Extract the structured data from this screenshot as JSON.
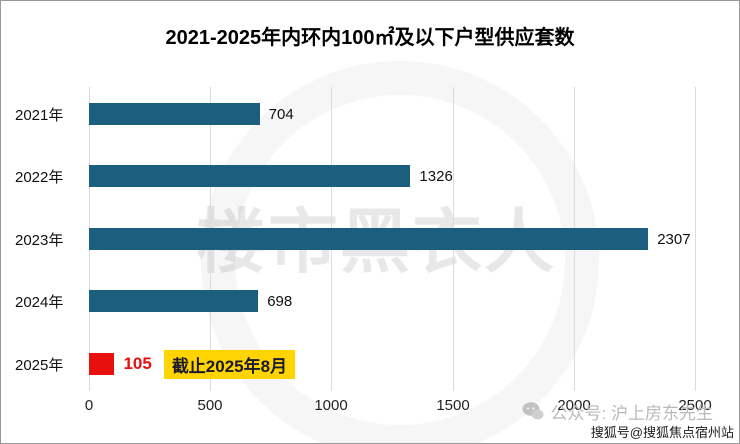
{
  "title": "2021-2025年内环内100㎡及以下户型供应套数",
  "chart_data": {
    "type": "bar",
    "orientation": "horizontal",
    "title": "2021-2025年内环内100㎡及以下户型供应套数",
    "categories": [
      "2021年",
      "2022年",
      "2023年",
      "2024年",
      "2025年"
    ],
    "values": [
      704,
      1326,
      2307,
      698,
      105
    ],
    "xlim": [
      0,
      2500
    ],
    "x_ticks": [
      0,
      500,
      1000,
      1500,
      2000,
      2500
    ],
    "grid": "vertical",
    "legend": "none",
    "bar_color": "#1b5e7d",
    "highlight_index": 4,
    "highlight_color": "#e80f0f",
    "annotation": "截止2025年8月",
    "annotation_bg": "#ffd400"
  },
  "watermark": {
    "text": "楼市黑衣人"
  },
  "footer": {
    "account": "公众号: 沪上房东先生",
    "sohu": "搜狐号@搜狐焦点宿州站"
  },
  "icons": {
    "wechat": "wechat-chat-bubbles-icon"
  }
}
